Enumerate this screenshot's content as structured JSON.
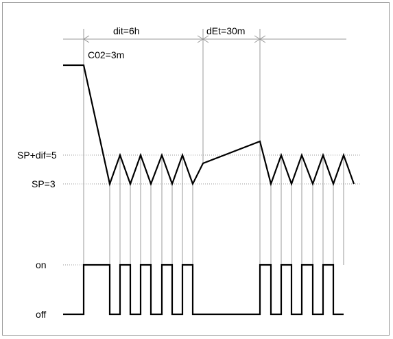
{
  "labels": {
    "dit": "dit=6h",
    "det": "dEt=30m",
    "c02": "C02=3m",
    "sp_dif": "SP+dif=5",
    "sp": "SP=3",
    "on": "on",
    "off": "off"
  },
  "colors": {
    "trace": "#000000",
    "guide": "#9a9a9a",
    "frame": "#9a9a9a"
  }
}
